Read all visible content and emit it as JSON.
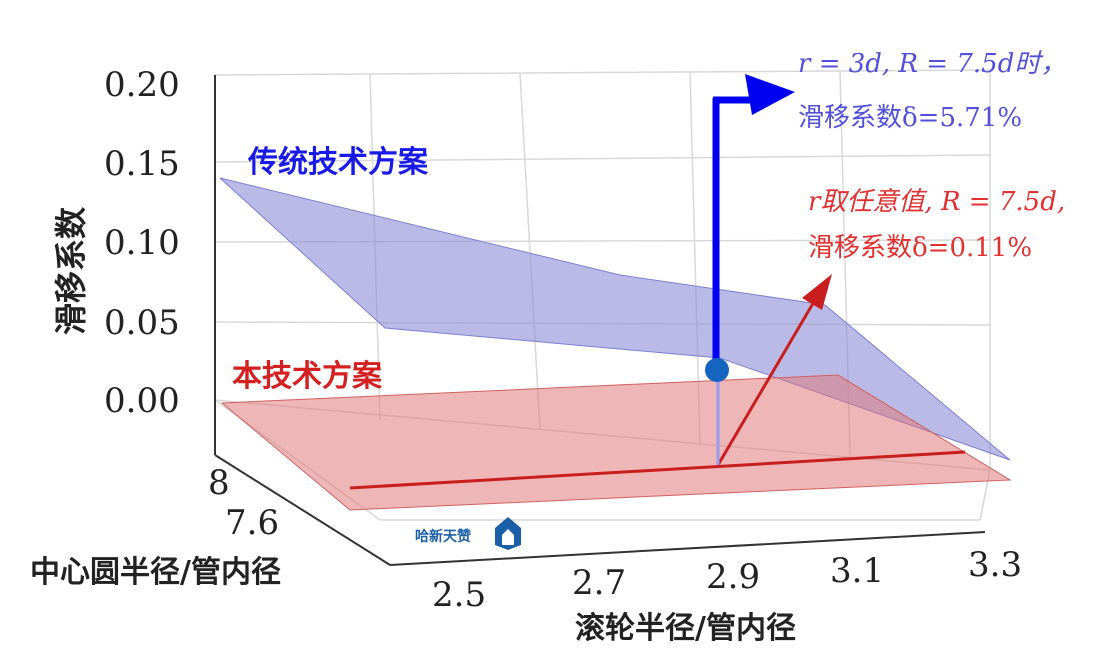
{
  "chart_data": {
    "type": "surface3d",
    "title": "",
    "xlabel": "滚轮半径/管内径",
    "ylabel": "中心圆半径/管内径",
    "zlabel": "滑移系数",
    "x_ticks": [
      "2.5",
      "2.7",
      "2.9",
      "3.1",
      "3.3"
    ],
    "y_ticks": [
      "8",
      "7.6"
    ],
    "z_ticks": [
      "0.20",
      "0.15",
      "0.10",
      "0.05",
      "0.00"
    ],
    "zlim": [
      0,
      0.2
    ],
    "grid": true,
    "series": [
      {
        "name": "传统技术方案",
        "color": "#7b7fd0",
        "label_color": "#1a1ae6"
      },
      {
        "name": "本技术方案",
        "color": "#e07a7a",
        "label_color": "#d42020"
      }
    ],
    "annotations": [
      {
        "lines": [
          "r = 3d, R = 7.5d时，",
          "滑移系数δ=5.71%"
        ],
        "color": "#5050d8"
      },
      {
        "lines": [
          "r取任意值, R = 7.5d,",
          "滑移系数δ=0.11%"
        ],
        "color": "#e03030"
      }
    ],
    "watermark": "哈新天赞"
  }
}
